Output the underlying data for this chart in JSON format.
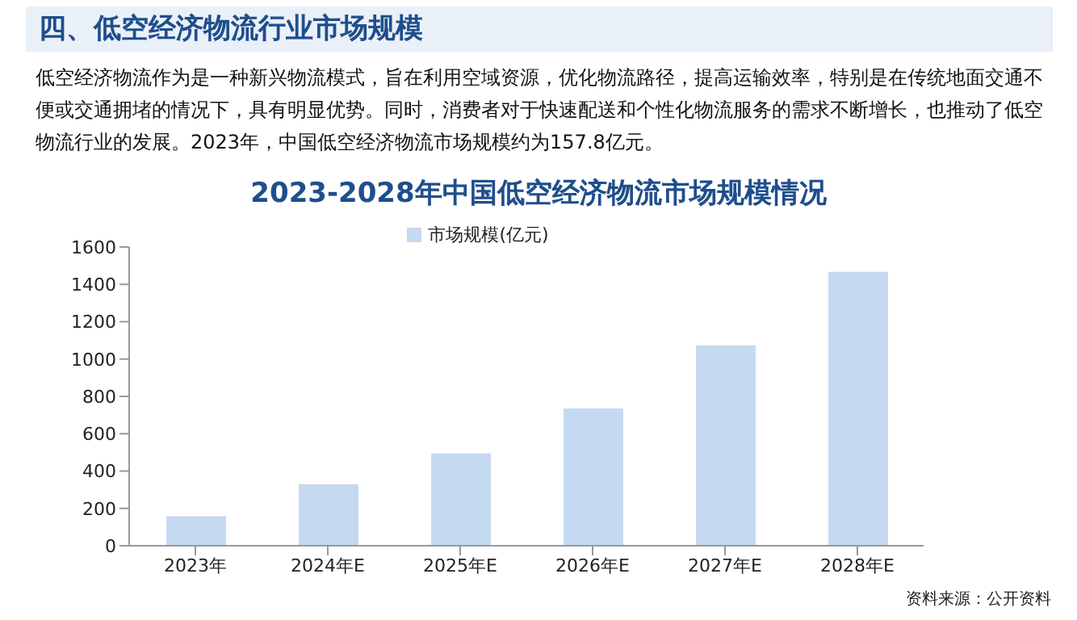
{
  "chart_data": {
    "type": "bar",
    "title": "2023-2028年中国低空经济物流市场规模情况",
    "subtitle": "低空经济物流作为是一种新兴物流模式，旨在利用空域资源，优化物流路径，提高运输效率，特别是在传统地面交通不便或交通拥堵的情况下，具有明显优势。同时，消费者对于快速配送和个性化物流服务的需求不断增长，也推动了低空物流行业的发展。2023年，中国低空经济物流市场规模约为157.8亿元。",
    "annotations": [
      "四、低空经济物流行业市场规模",
      "资料来源：公开资料"
    ],
    "categories": [
      "2023年",
      "2024年E",
      "2025年E",
      "2026年E",
      "2027年E",
      "2028年E"
    ],
    "series": [
      {
        "name": "市场规模(亿元)",
        "color": "#c5d9f1",
        "values": [
          157.8,
          330,
          495,
          735,
          1073,
          1467
        ]
      }
    ],
    "ylim": [
      0,
      1600
    ],
    "yticks": [
      0,
      200,
      400,
      600,
      800,
      1000,
      1200,
      1400,
      1600
    ],
    "grid": false,
    "legend": "top"
  }
}
